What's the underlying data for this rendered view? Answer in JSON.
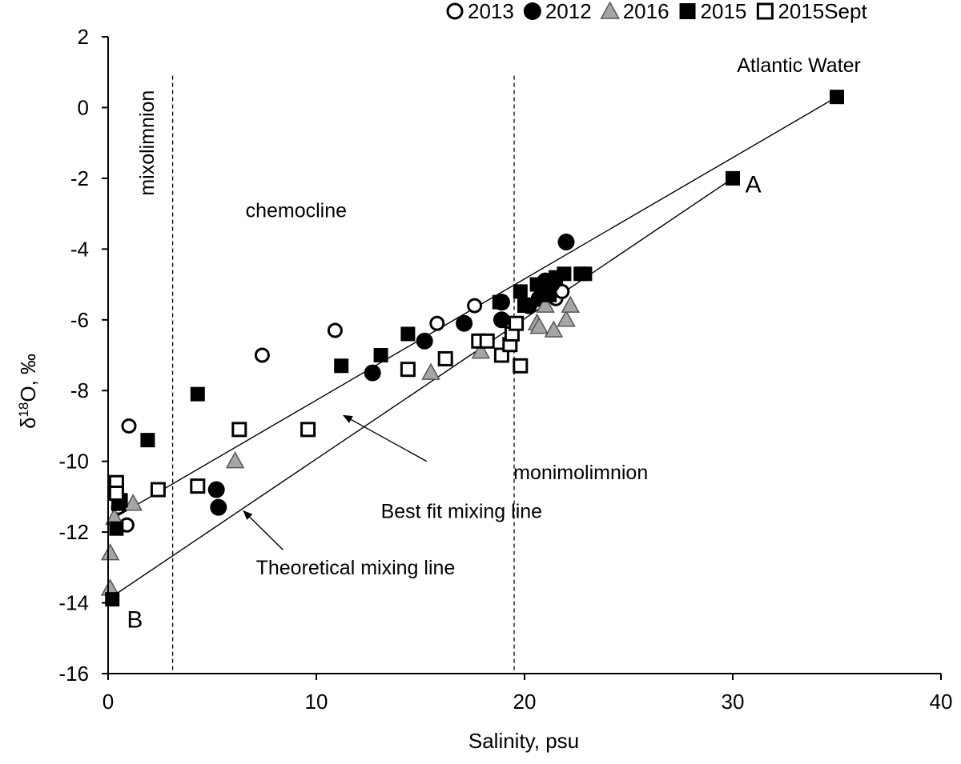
{
  "chart_data": {
    "type": "scatter",
    "xlabel": "Salinity, psu",
    "ylabel": "δ¹⁸O, ‰",
    "ylabel_parts": {
      "pre": "δ",
      "sup": "18",
      "post": "O, ‰"
    },
    "xlim": [
      0,
      40
    ],
    "ylim": [
      -16,
      2
    ],
    "xticks": [
      0,
      10,
      20,
      30,
      40
    ],
    "yticks": [
      -16,
      -14,
      -12,
      -10,
      -8,
      -6,
      -4,
      -2,
      0,
      2
    ],
    "grid": false,
    "legend_position": "top",
    "series": [
      {
        "name": "2013",
        "marker": "circle-open",
        "points": [
          [
            0.5,
            -11.3
          ],
          [
            0.9,
            -11.8
          ],
          [
            1.0,
            -9.0
          ],
          [
            7.4,
            -7.0
          ],
          [
            10.9,
            -6.3
          ],
          [
            15.8,
            -6.1
          ],
          [
            17.6,
            -5.6
          ],
          [
            21.5,
            -5.4
          ],
          [
            21.8,
            -5.2
          ]
        ]
      },
      {
        "name": "2012",
        "marker": "circle-filled",
        "points": [
          [
            5.2,
            -10.8
          ],
          [
            5.3,
            -11.3
          ],
          [
            12.7,
            -7.5
          ],
          [
            15.2,
            -6.6
          ],
          [
            17.1,
            -6.1
          ],
          [
            18.9,
            -6.0
          ],
          [
            18.9,
            -5.5
          ],
          [
            20.2,
            -5.6
          ],
          [
            20.7,
            -5.4
          ],
          [
            20.9,
            -5.0
          ],
          [
            21.0,
            -4.9
          ],
          [
            21.3,
            -5.0
          ],
          [
            22.0,
            -3.8
          ]
        ]
      },
      {
        "name": "2016",
        "marker": "triangle-gray",
        "points": [
          [
            0.1,
            -13.6
          ],
          [
            0.1,
            -12.6
          ],
          [
            0.3,
            -11.6
          ],
          [
            1.2,
            -11.2
          ],
          [
            6.1,
            -10.0
          ],
          [
            15.5,
            -7.5
          ],
          [
            17.9,
            -6.9
          ],
          [
            20.6,
            -6.1
          ],
          [
            20.7,
            -6.2
          ],
          [
            21.0,
            -5.6
          ],
          [
            21.4,
            -6.3
          ],
          [
            22.0,
            -6.0
          ],
          [
            22.2,
            -5.6
          ]
        ]
      },
      {
        "name": "2015",
        "marker": "square-filled",
        "points": [
          [
            0.2,
            -13.9
          ],
          [
            0.4,
            -11.9
          ],
          [
            0.5,
            -11.2
          ],
          [
            0.6,
            -11.1
          ],
          [
            1.9,
            -9.4
          ],
          [
            4.3,
            -8.1
          ],
          [
            11.2,
            -7.3
          ],
          [
            13.1,
            -7.0
          ],
          [
            14.4,
            -6.4
          ],
          [
            18.8,
            -5.5
          ],
          [
            19.8,
            -5.2
          ],
          [
            20.0,
            -5.6
          ],
          [
            20.6,
            -5.0
          ],
          [
            21.2,
            -5.3
          ],
          [
            21.5,
            -4.8
          ],
          [
            21.9,
            -4.7
          ],
          [
            22.7,
            -4.7
          ],
          [
            22.9,
            -4.7
          ],
          [
            30.0,
            -2.0
          ],
          [
            35.0,
            0.3
          ]
        ]
      },
      {
        "name": "2015Sept",
        "marker": "square-open",
        "points": [
          [
            0.4,
            -10.6
          ],
          [
            0.4,
            -10.9
          ],
          [
            2.4,
            -10.8
          ],
          [
            4.3,
            -10.7
          ],
          [
            6.3,
            -9.1
          ],
          [
            9.6,
            -9.1
          ],
          [
            14.4,
            -7.4
          ],
          [
            16.2,
            -7.1
          ],
          [
            17.8,
            -6.6
          ],
          [
            18.2,
            -6.6
          ],
          [
            18.9,
            -7.0
          ],
          [
            19.3,
            -6.7
          ],
          [
            19.4,
            -6.4
          ],
          [
            19.6,
            -6.1
          ],
          [
            19.8,
            -7.3
          ]
        ]
      }
    ],
    "lines": [
      {
        "name": "Best fit mixing line",
        "from": [
          0,
          -11.7
        ],
        "to": [
          35,
          0.3
        ]
      },
      {
        "name": "Theoretical mixing line",
        "from": [
          0,
          -13.9
        ],
        "to": [
          30,
          -2.0
        ]
      }
    ],
    "vlines": [
      3.1,
      19.5
    ],
    "annotations": [
      {
        "text": "mixolimnion",
        "x": 2.2,
        "y": -1.0,
        "rotate": -90,
        "anchor": "middle",
        "cls": "annot"
      },
      {
        "text": "chemocline",
        "x": 6.6,
        "y": -3.1,
        "anchor": "start",
        "cls": "annot"
      },
      {
        "text": "monimolimnion",
        "x": 22.7,
        "y": -10.5,
        "anchor": "middle",
        "cls": "annot"
      },
      {
        "text": "Atlantic Water",
        "x": 30.2,
        "y": 1.0,
        "anchor": "start",
        "cls": "annot"
      },
      {
        "text": "A",
        "x": 30.6,
        "y": -2.4,
        "anchor": "start",
        "cls": "letter"
      },
      {
        "text": "B",
        "x": 0.9,
        "y": -14.7,
        "anchor": "start",
        "cls": "letter"
      },
      {
        "text": "Best fit mixing line",
        "x": 13.1,
        "y": -11.6,
        "anchor": "start",
        "cls": "annot"
      },
      {
        "text": "Theoretical mixing line",
        "x": 7.1,
        "y": -13.2,
        "anchor": "start",
        "cls": "annot"
      }
    ],
    "arrows": [
      {
        "from": [
          15.3,
          -10.0
        ],
        "to": [
          11.3,
          -8.7
        ]
      },
      {
        "from": [
          8.4,
          -12.5
        ],
        "to": [
          6.5,
          -11.4
        ]
      }
    ]
  }
}
